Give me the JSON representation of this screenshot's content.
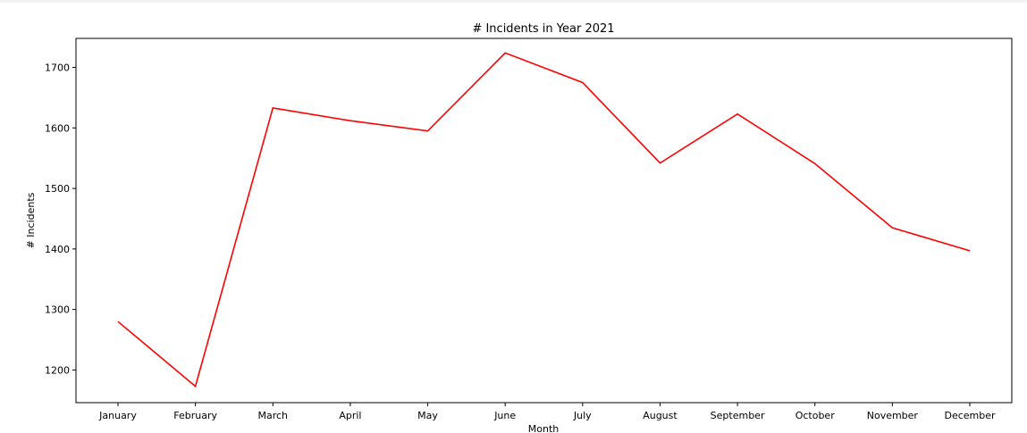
{
  "chart_data": {
    "type": "line",
    "title": "# Incidents in Year 2021",
    "xlabel": "Month",
    "ylabel": "# Incidents",
    "categories": [
      "January",
      "February",
      "March",
      "April",
      "May",
      "June",
      "July",
      "August",
      "September",
      "October",
      "November",
      "December"
    ],
    "series": [
      {
        "values": [
          1280,
          1173,
          1633,
          1612,
          1595,
          1724,
          1675,
          1542,
          1623,
          1541,
          1435,
          1397
        ],
        "color": "#ff0000"
      }
    ],
    "yticks": [
      1200,
      1300,
      1400,
      1500,
      1600,
      1700
    ],
    "ylim": [
      1146,
      1748
    ],
    "grid": false
  }
}
